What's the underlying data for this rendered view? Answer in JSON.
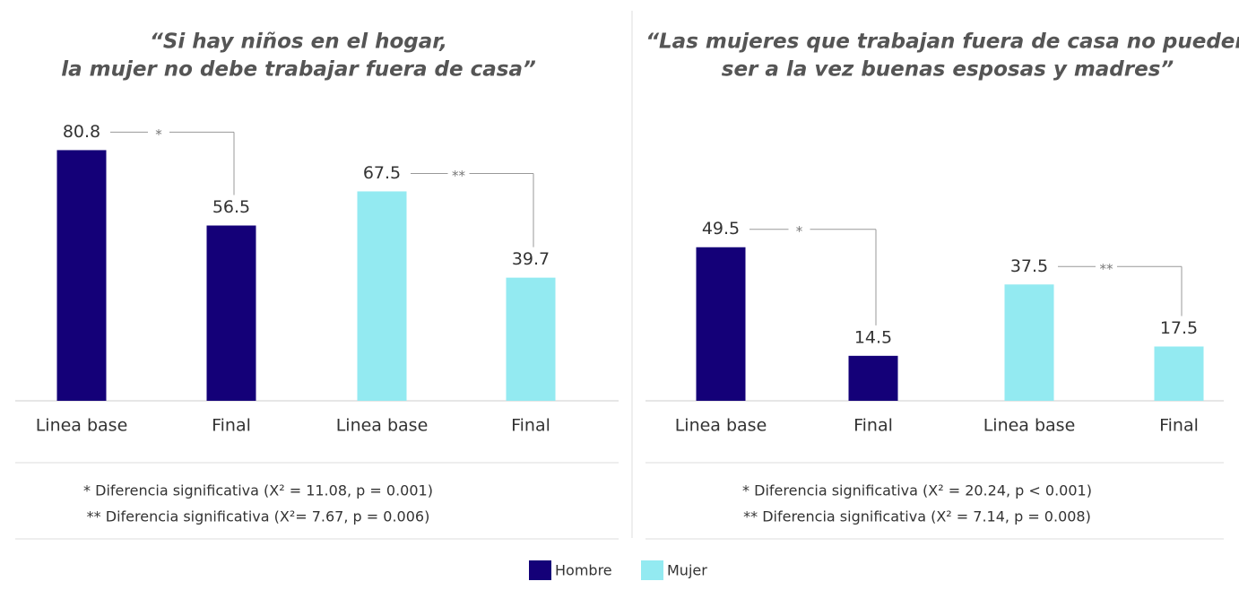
{
  "chart_data": [
    {
      "type": "bar",
      "title": [
        "“Si hay niños en el hogar,",
        "la mujer no debe trabajar fuera de casa”"
      ],
      "categories": [
        "Linea base",
        "Final",
        "Linea base",
        "Final"
      ],
      "values": [
        80.8,
        56.5,
        67.5,
        39.7
      ],
      "colors": [
        "#140078",
        "#140078",
        "#93eaf1",
        "#93eaf1"
      ],
      "brackets": [
        "*",
        "**"
      ],
      "notes": [
        "* Diferencia significativa (X² = 11.08, p = 0.001)",
        "** Diferencia significativa (X²= 7.67, p = 0.006)"
      ]
    },
    {
      "type": "bar",
      "title": [
        "“Las mujeres que trabajan fuera de casa no pueden",
        "ser a la vez buenas esposas y madres”"
      ],
      "categories": [
        "Linea base",
        "Final",
        "Linea base",
        "Final"
      ],
      "values": [
        49.5,
        14.5,
        37.5,
        17.5
      ],
      "colors": [
        "#140078",
        "#140078",
        "#93eaf1",
        "#93eaf1"
      ],
      "brackets": [
        "*",
        "**"
      ],
      "notes": [
        "* Diferencia significativa (X² = 20.24, p < 0.001)",
        "** Diferencia significativa (X² = 7.14, p = 0.008)"
      ]
    }
  ],
  "legend": [
    {
      "name": "Hombre",
      "color": "#140078"
    },
    {
      "name": "Mujer",
      "color": "#93eaf1"
    }
  ]
}
